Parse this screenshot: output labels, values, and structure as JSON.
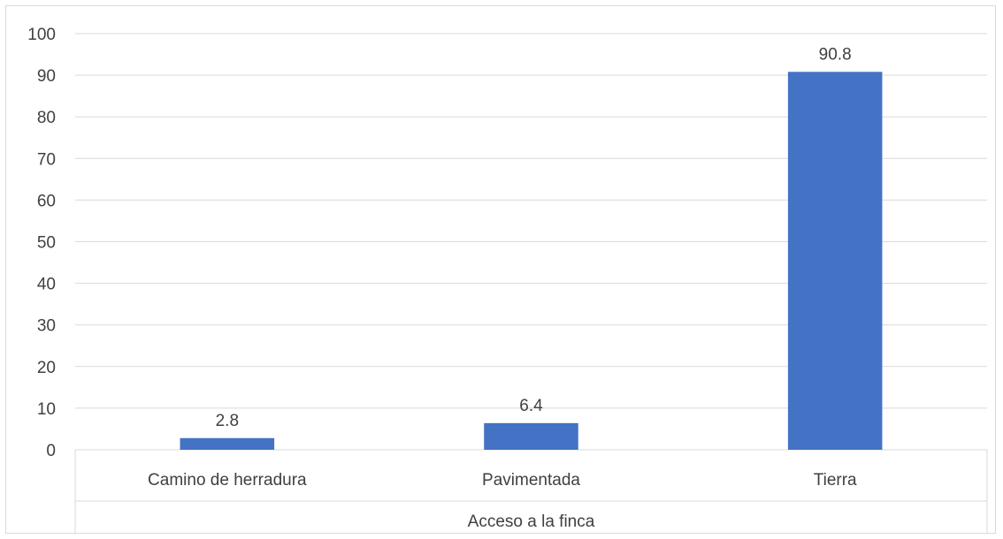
{
  "chart_data": {
    "type": "bar",
    "title": "",
    "xlabel": "Acceso a la finca",
    "ylabel": "",
    "categories": [
      "Camino de herradura",
      "Pavimentada",
      "Tierra"
    ],
    "series": [
      {
        "values": [
          2.8,
          6.4,
          90.8
        ],
        "color": "#4472c4"
      }
    ],
    "data_labels": [
      "2.8",
      "6.4",
      "90.8"
    ],
    "ylim": [
      0,
      100
    ],
    "yticks": [
      0,
      10,
      20,
      30,
      40,
      50,
      60,
      70,
      80,
      90,
      100
    ],
    "grid": true,
    "legend": "none"
  }
}
